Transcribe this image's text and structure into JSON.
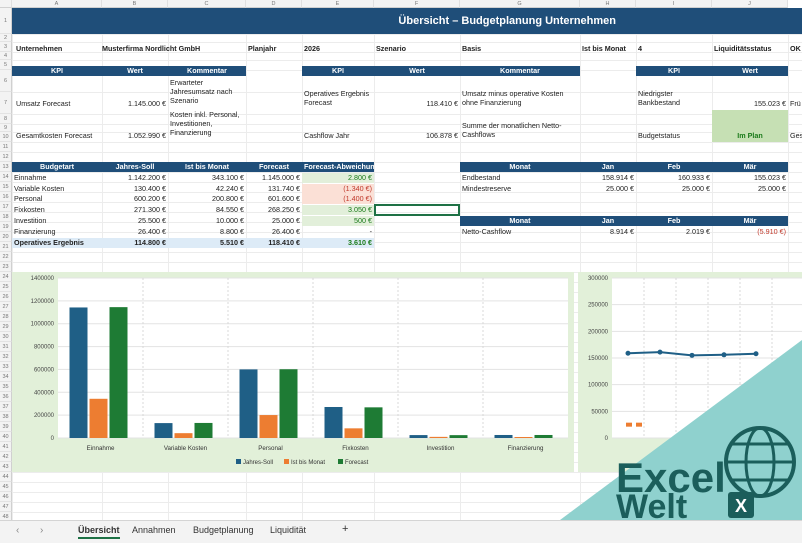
{
  "columns": [
    "A",
    "B",
    "C",
    "D",
    "E",
    "F",
    "G",
    "H",
    "I",
    "J"
  ],
  "rows": [
    "1",
    "2",
    "3",
    "4",
    "5",
    "6",
    "7",
    "8",
    "9",
    "10",
    "11",
    "12",
    "13",
    "14",
    "15",
    "16",
    "17",
    "18",
    "19",
    "20",
    "21",
    "22",
    "23",
    "24",
    "25",
    "26",
    "27",
    "28",
    "29",
    "30",
    "31",
    "32",
    "33",
    "34",
    "35",
    "36",
    "37",
    "38",
    "39",
    "40",
    "41",
    "42",
    "43",
    "44",
    "45",
    "46",
    "47",
    "48",
    "49",
    "50",
    "51"
  ],
  "title": "Übersicht – Budgetplanung Unternehmen",
  "info": {
    "company_label": "Unternehmen",
    "company": "Musterfirma Nordlicht GmbH",
    "year_label": "Planjahr",
    "year": "2026",
    "scenario_label": "Szenario",
    "scenario": "Basis",
    "month_label": "Ist bis Monat",
    "month": "4",
    "liq_label": "Liquiditätsstatus",
    "liq": "OK"
  },
  "kpi1": {
    "h_kpi": "KPI",
    "h_wert": "Wert",
    "h_komm": "Kommentar",
    "r1_kpi": "Umsatz Forecast",
    "r1_wert": "1.145.000 €",
    "r1_komm": "Erwarteter Jahresumsatz nach Szenario",
    "r2_kpi": "Gesamtkosten Forecast",
    "r2_wert": "1.052.990 €",
    "r2_komm": "Kosten inkl. Personal, Investitionen, Finanzierung"
  },
  "kpi2": {
    "h_kpi": "KPI",
    "h_wert": "Wert",
    "h_komm": "Kommentar",
    "r1_kpi": "Operatives Ergebnis Forecast",
    "r1_wert": "118.410 €",
    "r1_komm": "Umsatz minus operative Kosten ohne Finanzierung",
    "r2_kpi": "Cashflow Jahr",
    "r2_wert": "106.878 €",
    "r2_komm": "Summe der monatlichen Netto-Cashflows"
  },
  "kpi3": {
    "h_kpi": "KPI",
    "h_wert": "Wert",
    "r1_kpi": "Niedrigster Bankbestand",
    "r1_wert": "155.023 €",
    "r1_extra": "Frü",
    "r2_kpi": "Budgetstatus",
    "r2_wert": "Im Plan",
    "r2_extra": "Ges"
  },
  "budget": {
    "headers": [
      "Budgetart",
      "Jahres-Soll",
      "Ist bis Monat",
      "Forecast",
      "Forecast-Abweichung"
    ],
    "rows": [
      [
        "Einnahme",
        "1.142.200 €",
        "343.100 €",
        "1.145.000 €",
        "2.800 €"
      ],
      [
        "Variable Kosten",
        "130.400 €",
        "42.240 €",
        "131.740 €",
        "(1.340 €)"
      ],
      [
        "Personal",
        "600.200 €",
        "200.800 €",
        "601.600 €",
        "(1.400 €)"
      ],
      [
        "Fixkosten",
        "271.300 €",
        "84.550 €",
        "268.250 €",
        "3.050 €"
      ],
      [
        "Investition",
        "25.500 €",
        "10.000 €",
        "25.000 €",
        "500 €"
      ],
      [
        "Finanzierung",
        "26.400 €",
        "8.800 €",
        "26.400 €",
        "-"
      ],
      [
        "Operatives Ergebnis",
        "114.800 €",
        "5.510 €",
        "118.410 €",
        "3.610 €"
      ]
    ]
  },
  "month1": {
    "headers": [
      "Monat",
      "Jan",
      "Feb",
      "Mär"
    ],
    "rows": [
      [
        "Endbestand",
        "158.914 €",
        "160.933 €",
        "155.023 €"
      ],
      [
        "Mindestreserve",
        "25.000 €",
        "25.000 €",
        "25.000 €"
      ]
    ]
  },
  "month2": {
    "headers": [
      "Monat",
      "Jan",
      "Feb",
      "Mär"
    ],
    "rows": [
      [
        "Netto-Cashflow",
        "8.914 €",
        "2.019 €",
        "(5.910 €)"
      ]
    ]
  },
  "tabs": [
    "Übersicht",
    "Annahmen",
    "Budgetplanung",
    "Liquidität"
  ],
  "nav": {
    "prev": "‹",
    "next": "›",
    "add": "+"
  },
  "logo": {
    "line1": "Excel",
    "line2": "Welt"
  },
  "colors": {
    "header": "#1f4e79",
    "soll": "#1f5f86",
    "ist": "#ed7d31",
    "forecast": "#1e7b34",
    "teal": "#8fd1ce"
  },
  "chart_data": [
    {
      "type": "bar",
      "categories": [
        "Einnahme",
        "Variable Kosten",
        "Personal",
        "Fixkosten",
        "Investition",
        "Finanzierung"
      ],
      "series": [
        {
          "name": "Jahres-Soll",
          "values": [
            1142200,
            130400,
            600200,
            271300,
            25500,
            26400
          ]
        },
        {
          "name": "Ist bis Monat",
          "values": [
            343100,
            42240,
            200800,
            84550,
            10000,
            8800
          ]
        },
        {
          "name": "Forecast",
          "values": [
            1145000,
            131740,
            601600,
            268250,
            25000,
            26400
          ]
        }
      ],
      "yticks": [
        "0",
        "200000",
        "400000",
        "600000",
        "800000",
        "1000000",
        "1200000",
        "1400000"
      ],
      "ylim": [
        0,
        1400000
      ],
      "legend": "bottom",
      "grid": true
    },
    {
      "type": "line",
      "yticks": [
        "0",
        "50000",
        "100000",
        "150000",
        "200000",
        "250000",
        "300000"
      ],
      "ylim": [
        0,
        300000
      ],
      "series": [
        {
          "values": [
            158914,
            160933,
            155023,
            156000,
            158000
          ]
        },
        {
          "values": [
            25000,
            25000
          ]
        }
      ]
    }
  ]
}
